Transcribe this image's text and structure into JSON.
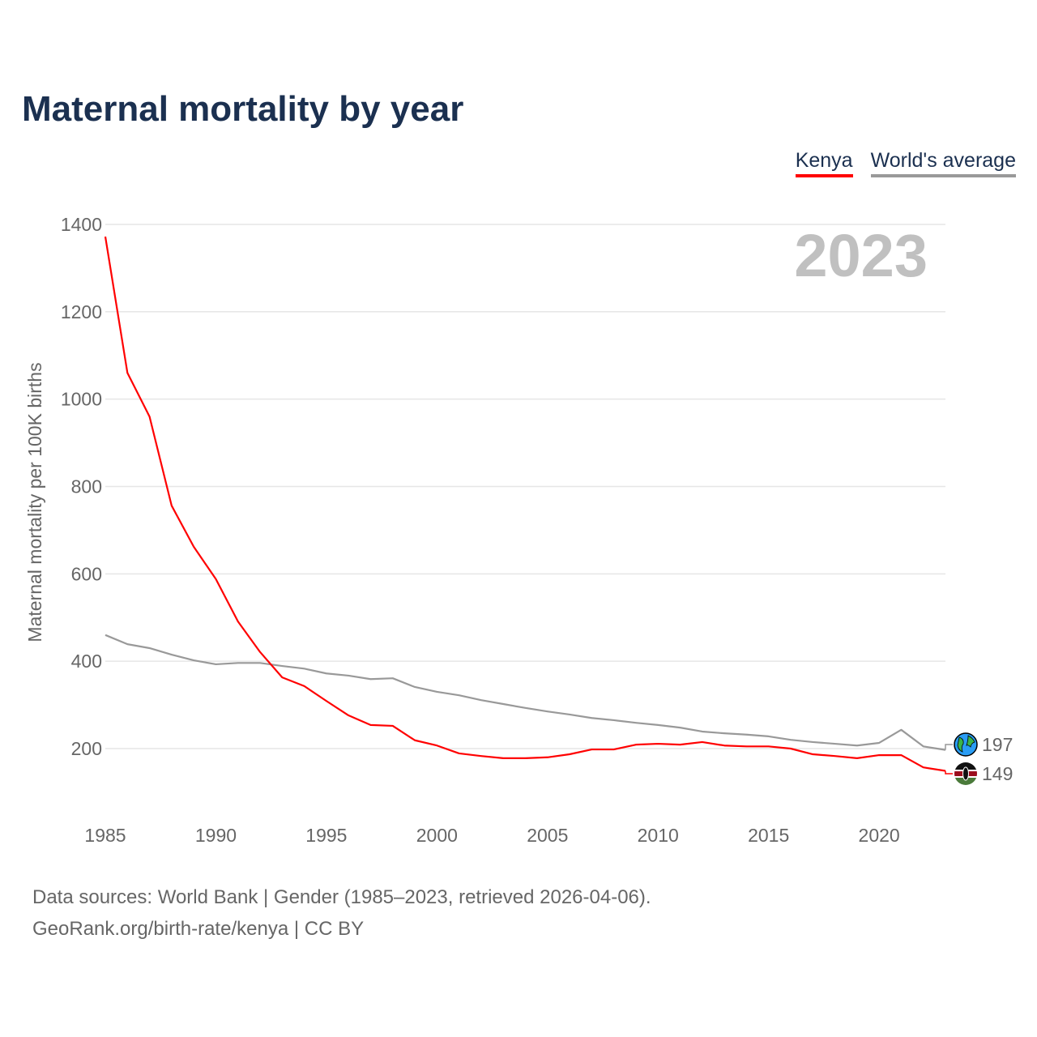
{
  "title": "Maternal mortality by year",
  "legend": {
    "kenya": "Kenya",
    "world": "World's average"
  },
  "source": {
    "line1": "Data sources: World Bank | Gender (1985–2023, retrieved 2026-04-06).",
    "line2": "GeoRank.org/birth-rate/kenya | CC BY"
  },
  "colors": {
    "kenya": "#ff0000",
    "world": "#999999",
    "title": "#1b3050"
  },
  "chart_data": {
    "type": "line",
    "title": "Maternal mortality by year",
    "ylabel": "Maternal mortality per 100K births",
    "xlabel": "",
    "year_label": "2023",
    "xlim": [
      1985,
      2023
    ],
    "ylim": [
      100,
      1400
    ],
    "yticks": [
      200,
      400,
      600,
      800,
      1000,
      1200,
      1400
    ],
    "xticks": [
      1985,
      1990,
      1995,
      2000,
      2005,
      2010,
      2015,
      2020
    ],
    "grid": true,
    "legend_position": "top-right",
    "x": [
      1985,
      1986,
      1987,
      1988,
      1989,
      1990,
      1991,
      1992,
      1993,
      1994,
      1995,
      1996,
      1997,
      1998,
      1999,
      2000,
      2001,
      2002,
      2003,
      2004,
      2005,
      2006,
      2007,
      2008,
      2009,
      2010,
      2011,
      2012,
      2013,
      2014,
      2015,
      2016,
      2017,
      2018,
      2019,
      2020,
      2021,
      2022,
      2023
    ],
    "series": [
      {
        "name": "Kenya",
        "end_label": "149",
        "values": [
          1372,
          1060,
          960,
          756,
          662,
          588,
          491,
          421,
          363,
          343,
          309,
          276,
          254,
          252,
          219,
          207,
          189,
          183,
          178,
          178,
          180,
          187,
          198,
          198,
          209,
          211,
          209,
          215,
          207,
          205,
          205,
          200,
          187,
          183,
          178,
          185,
          185,
          157,
          149
        ]
      },
      {
        "name": "World's average",
        "end_label": "197",
        "values": [
          460,
          439,
          430,
          415,
          402,
          393,
          396,
          396,
          389,
          383,
          372,
          367,
          359,
          361,
          341,
          330,
          322,
          311,
          302,
          293,
          285,
          278,
          270,
          265,
          259,
          254,
          248,
          239,
          235,
          232,
          228,
          220,
          215,
          211,
          207,
          213,
          243,
          205,
          197
        ]
      }
    ]
  }
}
